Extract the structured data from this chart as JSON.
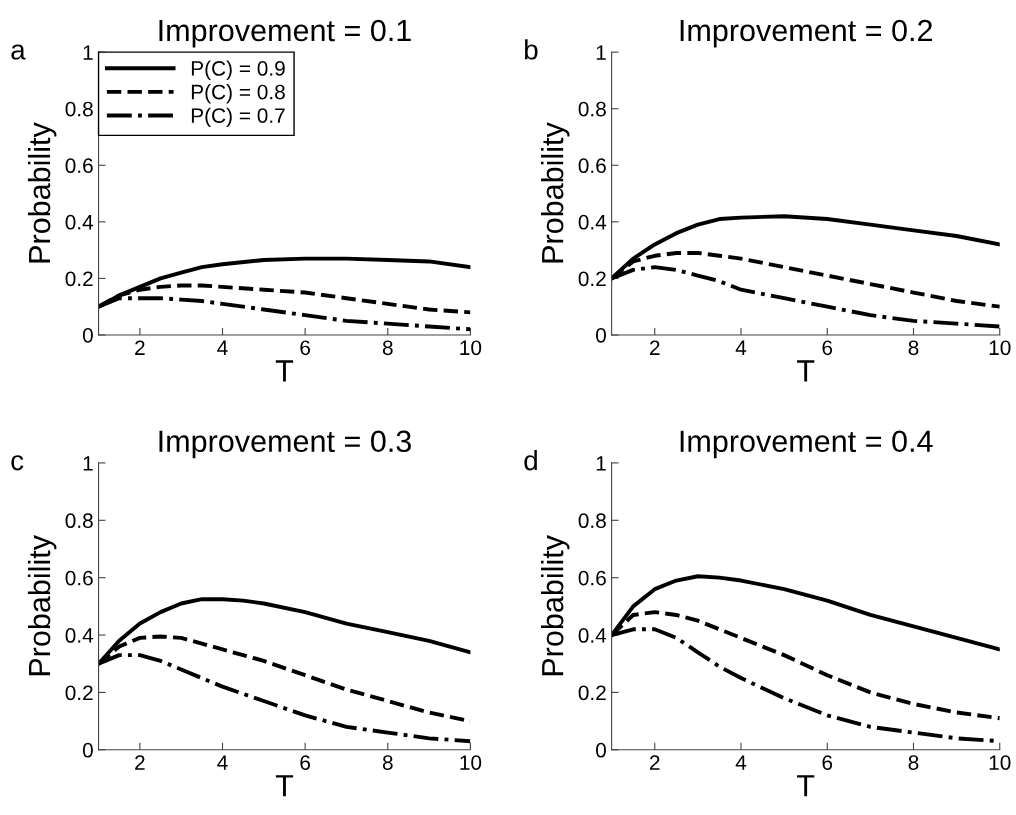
{
  "chart_data": [
    {
      "type": "line",
      "title": "Improvement = 0.1",
      "xlabel": "T",
      "ylabel": "Probability",
      "annotations": [
        "a"
      ],
      "xlim": [
        1,
        10
      ],
      "ylim": [
        0,
        1
      ],
      "xticks": [
        2,
        4,
        6,
        8,
        10
      ],
      "yticks": [
        0,
        0.2,
        0.4,
        0.6,
        0.8,
        1
      ],
      "grid": false,
      "legend": "top left",
      "x": [
        1,
        1.5,
        2,
        2.5,
        3,
        3.5,
        4,
        5,
        6,
        7,
        8,
        9,
        10
      ],
      "series": [
        {
          "name": "P(C) = 0.9",
          "color": "#000000",
          "line_style": "solid",
          "values": [
            0.1,
            0.14,
            0.17,
            0.2,
            0.22,
            0.24,
            0.25,
            0.265,
            0.27,
            0.27,
            0.265,
            0.26,
            0.24
          ]
        },
        {
          "name": "P(C) = 0.8",
          "color": "#000000",
          "line_style": "dashed",
          "values": [
            0.1,
            0.14,
            0.16,
            0.17,
            0.175,
            0.175,
            0.17,
            0.16,
            0.15,
            0.13,
            0.11,
            0.09,
            0.08
          ]
        },
        {
          "name": "P(C) = 0.7",
          "color": "#000000",
          "line_style": "dashdot",
          "values": [
            0.1,
            0.13,
            0.13,
            0.13,
            0.125,
            0.12,
            0.11,
            0.09,
            0.07,
            0.05,
            0.04,
            0.03,
            0.02
          ]
        }
      ]
    },
    {
      "type": "line",
      "title": "Improvement = 0.2",
      "xlabel": "T",
      "ylabel": "Probability",
      "annotations": [
        "b"
      ],
      "xlim": [
        1,
        10
      ],
      "ylim": [
        0,
        1
      ],
      "xticks": [
        2,
        4,
        6,
        8,
        10
      ],
      "yticks": [
        0,
        0.2,
        0.4,
        0.6,
        0.8,
        1
      ],
      "grid": false,
      "x": [
        1,
        1.5,
        2,
        2.5,
        3,
        3.5,
        4,
        5,
        6,
        7,
        8,
        9,
        10
      ],
      "series": [
        {
          "color": "#000000",
          "line_style": "solid",
          "values": [
            0.2,
            0.27,
            0.32,
            0.36,
            0.39,
            0.41,
            0.415,
            0.42,
            0.41,
            0.39,
            0.37,
            0.35,
            0.32
          ]
        },
        {
          "color": "#000000",
          "line_style": "dashed",
          "values": [
            0.2,
            0.26,
            0.28,
            0.29,
            0.29,
            0.28,
            0.27,
            0.24,
            0.21,
            0.18,
            0.15,
            0.12,
            0.1
          ]
        },
        {
          "color": "#000000",
          "line_style": "dashdot",
          "values": [
            0.2,
            0.23,
            0.24,
            0.23,
            0.21,
            0.19,
            0.16,
            0.13,
            0.1,
            0.07,
            0.05,
            0.04,
            0.03
          ]
        }
      ]
    },
    {
      "type": "line",
      "title": "Improvement = 0.3",
      "xlabel": "T",
      "ylabel": "Probability",
      "annotations": [
        "c"
      ],
      "xlim": [
        1,
        10
      ],
      "ylim": [
        0,
        1
      ],
      "xticks": [
        2,
        4,
        6,
        8,
        10
      ],
      "yticks": [
        0,
        0.2,
        0.4,
        0.6,
        0.8,
        1
      ],
      "grid": false,
      "x": [
        1,
        1.5,
        2,
        2.5,
        3,
        3.5,
        4,
        4.5,
        5,
        6,
        7,
        8,
        9,
        10
      ],
      "series": [
        {
          "color": "#000000",
          "line_style": "solid",
          "values": [
            0.3,
            0.38,
            0.44,
            0.48,
            0.51,
            0.525,
            0.525,
            0.52,
            0.51,
            0.48,
            0.44,
            0.41,
            0.38,
            0.34
          ]
        },
        {
          "color": "#000000",
          "line_style": "dashed",
          "values": [
            0.3,
            0.36,
            0.39,
            0.395,
            0.39,
            0.37,
            0.35,
            0.33,
            0.31,
            0.26,
            0.21,
            0.17,
            0.13,
            0.1
          ]
        },
        {
          "color": "#000000",
          "line_style": "dashdot",
          "values": [
            0.3,
            0.33,
            0.33,
            0.31,
            0.28,
            0.25,
            0.22,
            0.195,
            0.17,
            0.12,
            0.08,
            0.06,
            0.04,
            0.03
          ]
        }
      ]
    },
    {
      "type": "line",
      "title": "Improvement = 0.4",
      "xlabel": "T",
      "ylabel": "Probability",
      "annotations": [
        "d"
      ],
      "xlim": [
        1,
        10
      ],
      "ylim": [
        0,
        1
      ],
      "xticks": [
        2,
        4,
        6,
        8,
        10
      ],
      "yticks": [
        0,
        0.2,
        0.4,
        0.6,
        0.8,
        1
      ],
      "grid": false,
      "x": [
        1,
        1.5,
        2,
        2.5,
        3,
        3.5,
        4,
        5,
        6,
        7,
        8,
        9,
        10
      ],
      "series": [
        {
          "color": "#000000",
          "line_style": "solid",
          "values": [
            0.4,
            0.5,
            0.56,
            0.59,
            0.605,
            0.6,
            0.59,
            0.56,
            0.52,
            0.47,
            0.43,
            0.39,
            0.35
          ]
        },
        {
          "color": "#000000",
          "line_style": "dashed",
          "values": [
            0.4,
            0.47,
            0.48,
            0.47,
            0.45,
            0.42,
            0.39,
            0.33,
            0.26,
            0.2,
            0.16,
            0.13,
            0.11
          ]
        },
        {
          "color": "#000000",
          "line_style": "dashdot",
          "values": [
            0.4,
            0.42,
            0.42,
            0.39,
            0.34,
            0.29,
            0.25,
            0.18,
            0.12,
            0.08,
            0.06,
            0.04,
            0.03
          ]
        }
      ]
    }
  ]
}
